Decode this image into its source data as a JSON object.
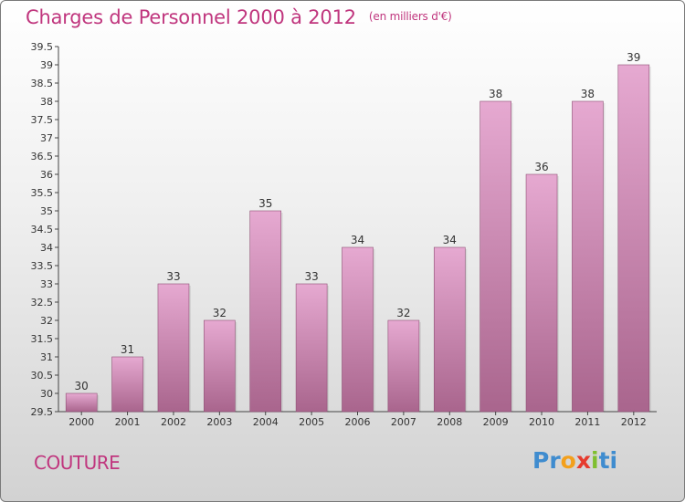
{
  "header": {
    "title": "Charges de Personnel 2000 à 2012",
    "subtitle": "(en milliers d'€)"
  },
  "footer": {
    "commune": "COUTURE",
    "logo_text": "Proxiti"
  },
  "colors": {
    "title": "#c0367e",
    "bar_top": "#e6a9d1",
    "bar_bottom": "#a9658d"
  },
  "chart_data": {
    "type": "bar",
    "title": "Charges de Personnel 2000 à 2012",
    "subtitle": "(en milliers d'€)",
    "categories": [
      "2000",
      "2001",
      "2002",
      "2003",
      "2004",
      "2005",
      "2006",
      "2007",
      "2008",
      "2009",
      "2010",
      "2011",
      "2012"
    ],
    "values": [
      30,
      31,
      33,
      32,
      35,
      33,
      34,
      32,
      34,
      38,
      36,
      38,
      39
    ],
    "ylim": [
      29.5,
      39.5
    ],
    "yticks": [
      "29.5",
      "30",
      "30.5",
      "31",
      "31.5",
      "32",
      "32.5",
      "33",
      "33.5",
      "34",
      "34.5",
      "35",
      "35.5",
      "36",
      "36.5",
      "37",
      "37.5",
      "38",
      "38.5",
      "39",
      "39.5"
    ],
    "grid": false,
    "legend": "none"
  }
}
